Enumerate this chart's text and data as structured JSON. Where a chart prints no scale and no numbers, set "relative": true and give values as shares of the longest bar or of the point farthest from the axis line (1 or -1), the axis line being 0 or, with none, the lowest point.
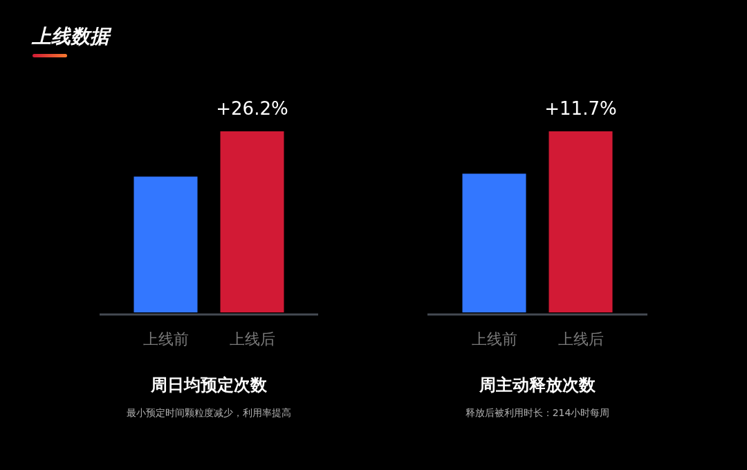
{
  "chart_data": [
    {
      "type": "bar",
      "relative": true,
      "title": "周日均预定次数",
      "subtitle": "最小预定时间颗粒度减少，利用率提高",
      "categories": [
        "上线前",
        "上线后"
      ],
      "values": [
        0.75,
        1
      ],
      "colors": [
        "#3377ff",
        "#d21a35"
      ],
      "annotations": [
        "上线数据",
        {
          "text": "+26.2%",
          "x": "上线后",
          "y": 1
        }
      ]
    },
    {
      "type": "bar",
      "relative": true,
      "title": "周主动释放次数",
      "subtitle": "释放后被利用时长：214小时每周",
      "categories": [
        "上线前",
        "上线后"
      ],
      "values": [
        0.766,
        1
      ],
      "colors": [
        "#3377ff",
        "#d21a35"
      ],
      "annotations": [
        {
          "text": "+11.7%",
          "x": "上线后",
          "y": 1
        }
      ]
    }
  ]
}
